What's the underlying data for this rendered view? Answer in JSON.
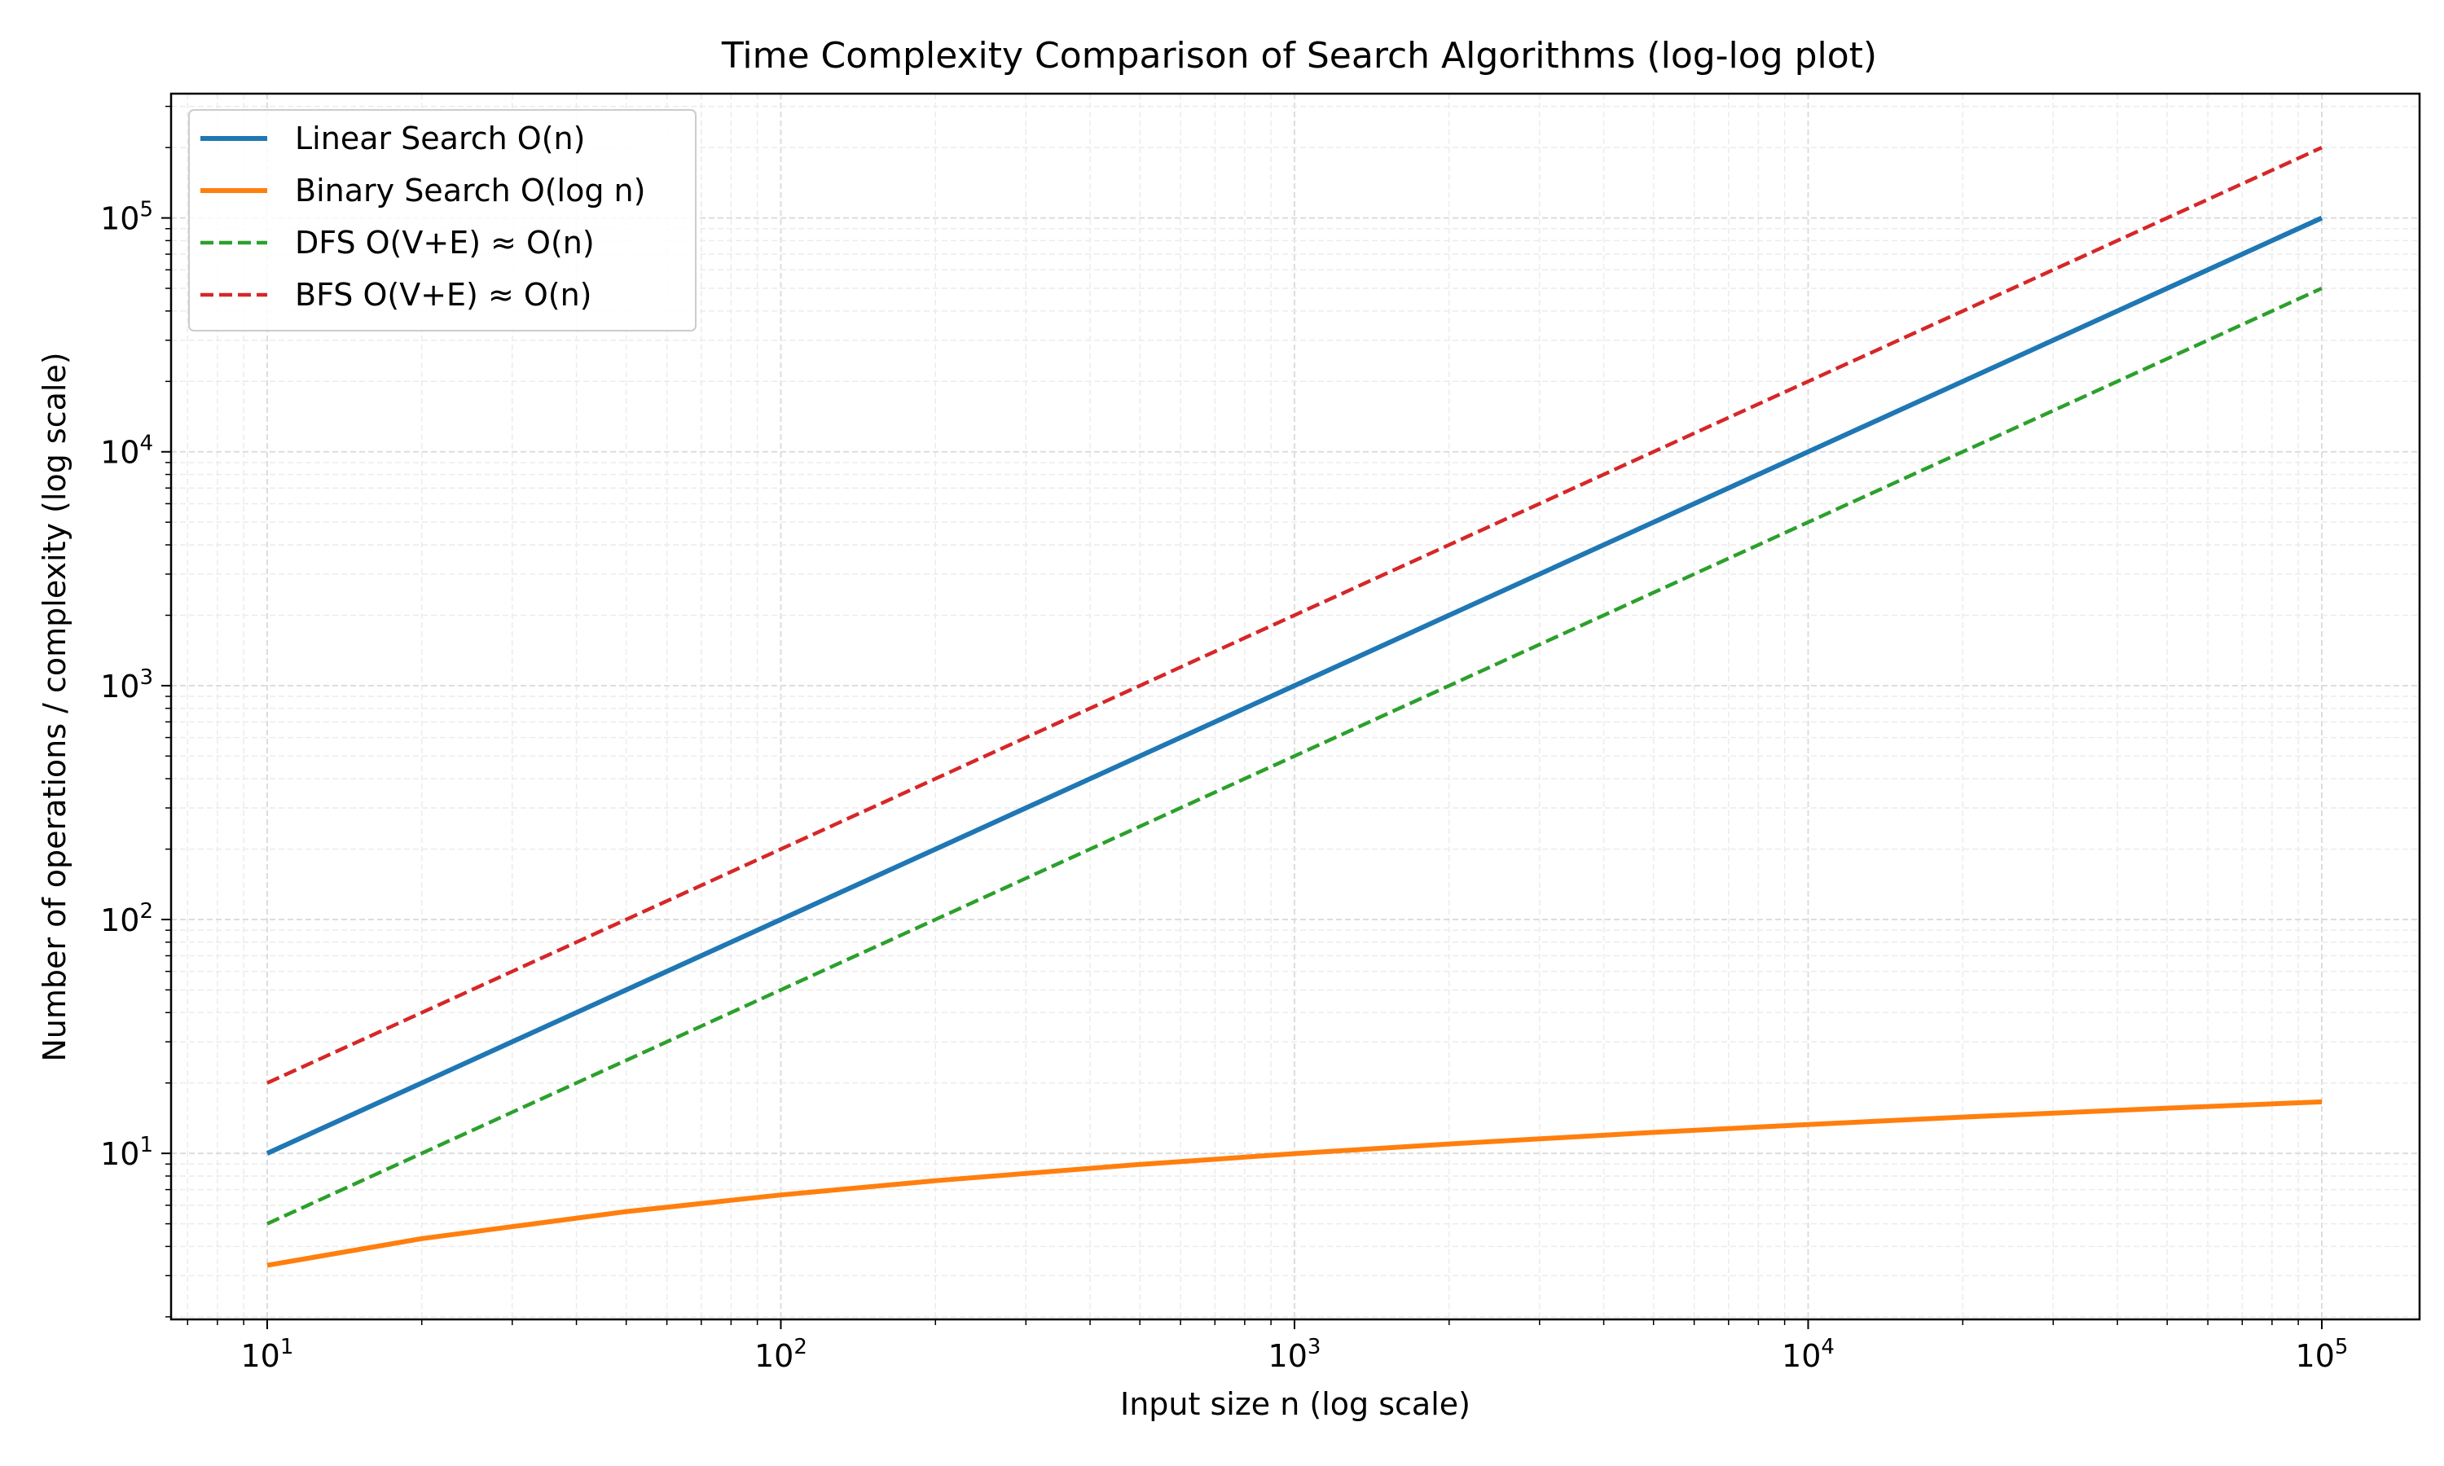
{
  "chart_data": {
    "type": "line",
    "title": "Time Complexity Comparison of Search Algorithms (log-log plot)",
    "xlabel": "Input size n (log scale)",
    "ylabel": "Number of operations / complexity (log scale)",
    "xscale": "log",
    "yscale": "log",
    "xlim": [
      6.5,
      155000
    ],
    "ylim": [
      1.95,
      340000
    ],
    "grid": true,
    "legend": "top-left",
    "xticks": [
      {
        "value": 10,
        "base": "10",
        "exp": "1"
      },
      {
        "value": 100,
        "base": "10",
        "exp": "2"
      },
      {
        "value": 1000,
        "base": "10",
        "exp": "3"
      },
      {
        "value": 10000,
        "base": "10",
        "exp": "4"
      },
      {
        "value": 100000,
        "base": "10",
        "exp": "5"
      }
    ],
    "yticks": [
      {
        "value": 10,
        "base": "10",
        "exp": "1"
      },
      {
        "value": 100,
        "base": "10",
        "exp": "2"
      },
      {
        "value": 1000,
        "base": "10",
        "exp": "3"
      },
      {
        "value": 10000,
        "base": "10",
        "exp": "4"
      },
      {
        "value": 100000,
        "base": "10",
        "exp": "5"
      }
    ],
    "series": [
      {
        "name": "Linear Search O(n)",
        "color": "#1f77b4",
        "style": "solid",
        "x": [
          10,
          20,
          50,
          100,
          200,
          500,
          1000,
          2000,
          5000,
          10000,
          20000,
          50000,
          100000
        ],
        "y": [
          10,
          20,
          50,
          100,
          200,
          500,
          1000,
          2000,
          5000,
          10000,
          20000,
          50000,
          100000
        ]
      },
      {
        "name": "Binary Search O(log n)",
        "color": "#ff7f0e",
        "style": "solid",
        "x": [
          10,
          20,
          50,
          100,
          200,
          500,
          1000,
          2000,
          5000,
          10000,
          20000,
          50000,
          100000
        ],
        "y": [
          3.32,
          4.32,
          5.64,
          6.64,
          7.64,
          8.97,
          9.97,
          10.97,
          12.29,
          13.29,
          14.29,
          15.61,
          16.61
        ]
      },
      {
        "name": "DFS O(V+E) ≈ O(n)",
        "color": "#2ca02c",
        "style": "dashed",
        "x": [
          10,
          20,
          50,
          100,
          200,
          500,
          1000,
          2000,
          5000,
          10000,
          20000,
          50000,
          100000
        ],
        "y": [
          5,
          10,
          25,
          50,
          100,
          250,
          500,
          1000,
          2500,
          5000,
          10000,
          25000,
          50000
        ]
      },
      {
        "name": "BFS O(V+E) ≈ O(n)",
        "color": "#d62728",
        "style": "dashed",
        "x": [
          10,
          20,
          50,
          100,
          200,
          500,
          1000,
          2000,
          5000,
          10000,
          20000,
          50000,
          100000
        ],
        "y": [
          20,
          40,
          100,
          200,
          400,
          1000,
          2000,
          4000,
          10000,
          20000,
          40000,
          100000,
          200000
        ]
      }
    ]
  }
}
